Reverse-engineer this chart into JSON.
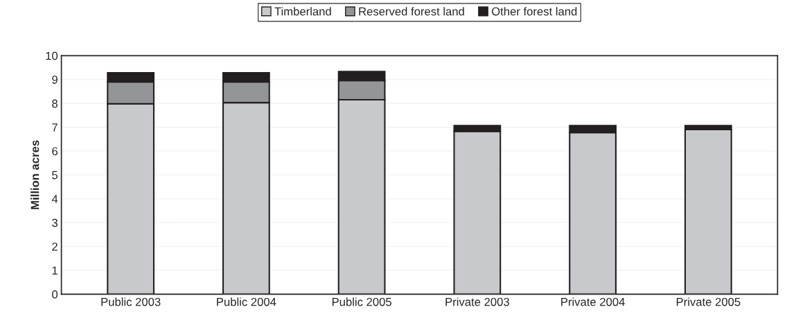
{
  "chart_data": {
    "type": "bar",
    "stacked": true,
    "ylabel": "Million acres",
    "categories": [
      "Public 2003",
      "Public 2004",
      "Public 2005",
      "Private 2003",
      "Private 2004",
      "Private 2005"
    ],
    "series": [
      {
        "name": "Timberland",
        "color": "#c8c9cc",
        "values": [
          7.98,
          8.03,
          8.15,
          6.83,
          6.78,
          6.9
        ]
      },
      {
        "name": "Reserved forest land",
        "color": "#939598",
        "values": [
          0.92,
          0.87,
          0.81,
          0,
          0,
          0
        ]
      },
      {
        "name": "Other forest land",
        "color": "#231f20",
        "values": [
          0.38,
          0.38,
          0.37,
          0.24,
          0.29,
          0.17
        ]
      }
    ],
    "ylim": [
      0,
      10
    ],
    "yticks": [
      0,
      1,
      2,
      3,
      4,
      5,
      6,
      7,
      8,
      9,
      10
    ],
    "grid": "y",
    "legend": "top"
  }
}
